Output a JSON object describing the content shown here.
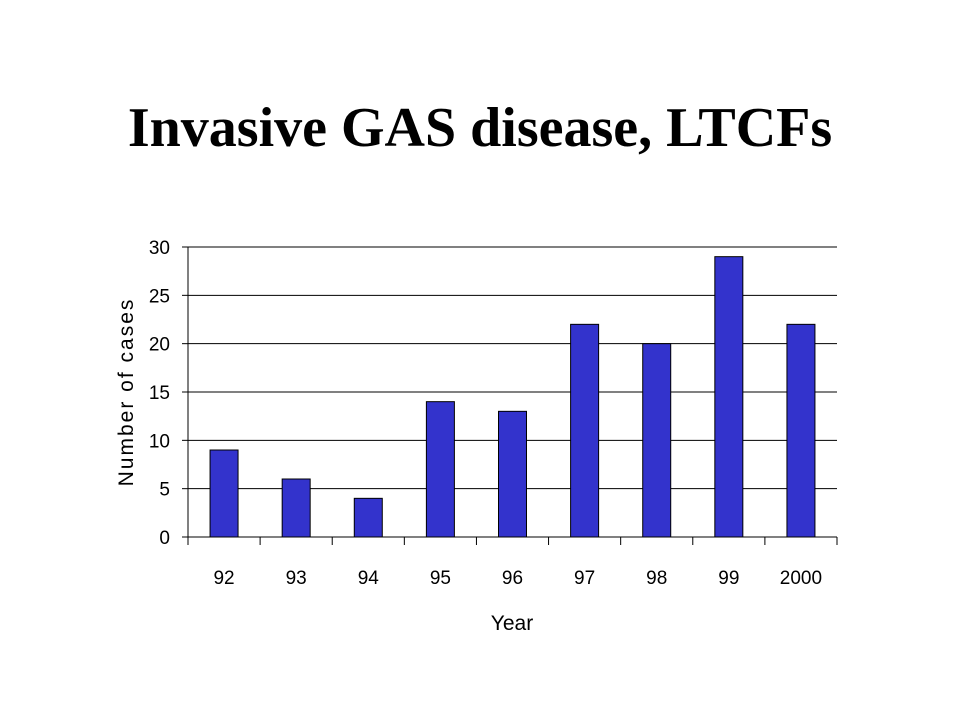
{
  "slide": {
    "title": "Invasive GAS disease, LTCFs"
  },
  "colors": {
    "bar_fill": "#3333cc",
    "bar_stroke": "#000000",
    "gridline": "#000000",
    "background": "#ffffff"
  },
  "chart_data": {
    "type": "bar",
    "title": "",
    "xlabel": "Year",
    "ylabel": "Number of cases",
    "categories": [
      "92",
      "93",
      "94",
      "95",
      "96",
      "97",
      "98",
      "99",
      "2000"
    ],
    "values": [
      9,
      6,
      4,
      14,
      13,
      22,
      20,
      29,
      22
    ],
    "ylim": [
      0,
      30
    ],
    "yticks": [
      0,
      5,
      10,
      15,
      20,
      25,
      30
    ],
    "grid": true,
    "legend": "none"
  }
}
